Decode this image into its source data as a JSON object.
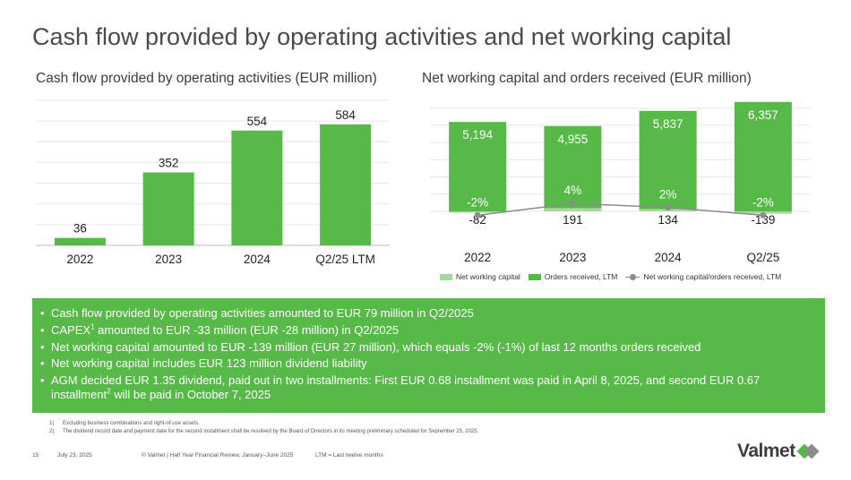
{
  "title": "Cash flow provided by operating activities and net working capital",
  "left_chart": {
    "subtitle": "Cash flow provided by operating activities (EUR million)",
    "chart_data": {
      "type": "bar",
      "categories": [
        "2022",
        "2023",
        "2024",
        "Q2/25 LTM"
      ],
      "values": [
        36,
        352,
        554,
        584
      ],
      "ylim": [
        0,
        700
      ],
      "grid": true,
      "color": "#57b948"
    }
  },
  "right_chart": {
    "subtitle": "Net working capital and orders received (EUR million)",
    "chart_data": {
      "type": "bar",
      "categories": [
        "2022",
        "2023",
        "2024",
        "Q2/25"
      ],
      "series": [
        {
          "name": "Net working capital",
          "values": [
            -82,
            191,
            134,
            -139
          ],
          "color": "#a8d8a0"
        },
        {
          "name": "Orders received, LTM",
          "values": [
            5194,
            4955,
            5837,
            6357
          ],
          "color": "#57b948"
        },
        {
          "name": "Net working capital/orders received, LTM",
          "type": "line",
          "values": [
            -2,
            4,
            2,
            -2
          ],
          "labels": [
            "-2%",
            "4%",
            "2%",
            "-2%"
          ],
          "color": "#8c8c8c"
        }
      ],
      "value_labels": {
        "orders": [
          "5,194",
          "4,955",
          "5,837",
          "6,357"
        ],
        "nwc": [
          "-82",
          "191",
          "134",
          "-139"
        ]
      },
      "legend_position": "bottom",
      "grid": true
    }
  },
  "bullets": [
    {
      "text": "Cash flow provided by operating activities amounted to EUR 79 million in Q2/2025"
    },
    {
      "pre": "CAPEX",
      "sup": "1",
      "post": " amounted to EUR -33 million (EUR -28 million) in Q2/2025"
    },
    {
      "text": "Net working capital amounted to EUR -139 million (EUR 27 million), which equals -2% (-1%) of last 12 months orders received"
    },
    {
      "text": "Net working capital includes EUR 123 million dividend liability"
    },
    {
      "pre": "AGM decided EUR 1.35 dividend, paid out in two installments: First EUR 0.68 installment was paid in April 8, 2025, and second EUR 0.67 installment",
      "sup": "2",
      "post": " will be paid in October 7, 2025"
    }
  ],
  "footnotes": [
    {
      "num": "1)",
      "text": "Excluding business combinations and right-of-use assets."
    },
    {
      "num": "2)",
      "text": "The dividend record date and payment date for the second installment shall be resolved by the Board of Directors in its meeting preliminary scheduled for September 25, 2025."
    }
  ],
  "footer": {
    "page": "15",
    "date": "July 23, 2025",
    "copyright": "© Valmet  | Half Year Financial Review, January–June 2025",
    "abbrev": "LTM = Last twelve months"
  },
  "logo": {
    "text": "Valmet",
    "colors": [
      "#57b948",
      "#8c8c8c"
    ]
  }
}
